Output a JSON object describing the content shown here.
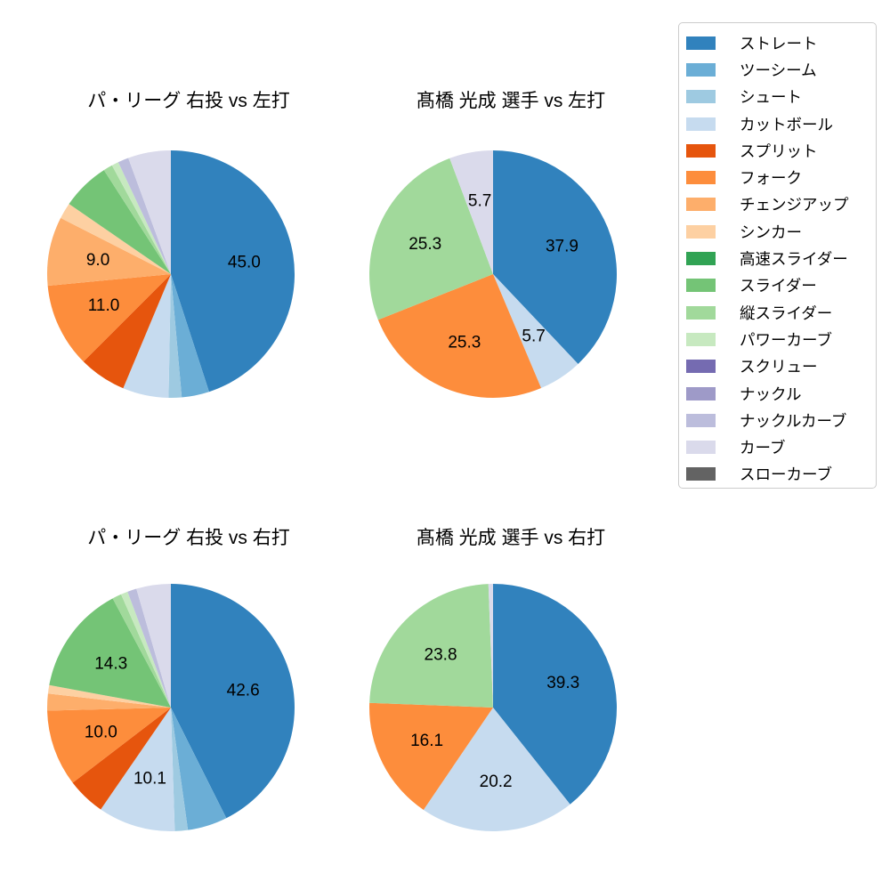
{
  "figure": {
    "background": "#ffffff",
    "text_color": "#000000",
    "legend_border_color": "#cccccc"
  },
  "legend": {
    "items": [
      {
        "label": "ストレート",
        "color": "#3182bd"
      },
      {
        "label": "ツーシーム",
        "color": "#6baed6"
      },
      {
        "label": "シュート",
        "color": "#9ecae1"
      },
      {
        "label": "カットボール",
        "color": "#c6dbef"
      },
      {
        "label": "スプリット",
        "color": "#e6550d"
      },
      {
        "label": "フォーク",
        "color": "#fd8d3c"
      },
      {
        "label": "チェンジアップ",
        "color": "#fdae6b"
      },
      {
        "label": "シンカー",
        "color": "#fdd0a2"
      },
      {
        "label": "高速スライダー",
        "color": "#31a354"
      },
      {
        "label": "スライダー",
        "color": "#74c476"
      },
      {
        "label": "縦スライダー",
        "color": "#a1d99b"
      },
      {
        "label": "パワーカーブ",
        "color": "#c7e9c0"
      },
      {
        "label": "スクリュー",
        "color": "#756bb1"
      },
      {
        "label": "ナックル",
        "color": "#9e9ac8"
      },
      {
        "label": "ナックルカーブ",
        "color": "#bcbddc"
      },
      {
        "label": "カーブ",
        "color": "#dadaeb"
      },
      {
        "label": "スローカーブ",
        "color": "#636363"
      }
    ]
  },
  "chart_data": [
    {
      "type": "pie",
      "title": "パ・リーグ 右投 vs 左打",
      "start_angle": "12-oclock",
      "direction": "clockwise",
      "value_unit": "percent",
      "slices": [
        {
          "label": "ストレート",
          "value": 45.0,
          "value_label_shown": true
        },
        {
          "label": "ツーシーム",
          "value": 3.6,
          "value_label_shown": false
        },
        {
          "label": "シュート",
          "value": 1.7,
          "value_label_shown": false
        },
        {
          "label": "カットボール",
          "value": 6.0,
          "value_label_shown": false
        },
        {
          "label": "スプリット",
          "value": 6.2,
          "value_label_shown": false
        },
        {
          "label": "フォーク",
          "value": 11.0,
          "value_label_shown": true
        },
        {
          "label": "チェンジアップ",
          "value": 9.0,
          "value_label_shown": true
        },
        {
          "label": "シンカー",
          "value": 2.1,
          "value_label_shown": false
        },
        {
          "label": "スライダー",
          "value": 6.3,
          "value_label_shown": false
        },
        {
          "label": "縦スライダー",
          "value": 1.2,
          "value_label_shown": false
        },
        {
          "label": "パワーカーブ",
          "value": 0.9,
          "value_label_shown": false
        },
        {
          "label": "ナックルカーブ",
          "value": 1.4,
          "value_label_shown": false
        },
        {
          "label": "カーブ",
          "value": 5.6,
          "value_label_shown": false
        }
      ]
    },
    {
      "type": "pie",
      "title": "髙橋 光成 選手 vs 左打",
      "start_angle": "12-oclock",
      "direction": "clockwise",
      "value_unit": "percent",
      "slices": [
        {
          "label": "ストレート",
          "value": 37.9,
          "value_label_shown": true
        },
        {
          "label": "カットボール",
          "value": 5.7,
          "value_label_shown": true
        },
        {
          "label": "フォーク",
          "value": 25.3,
          "value_label_shown": true
        },
        {
          "label": "縦スライダー",
          "value": 25.3,
          "value_label_shown": true
        },
        {
          "label": "カーブ",
          "value": 5.7,
          "value_label_shown": true
        }
      ]
    },
    {
      "type": "pie",
      "title": "パ・リーグ 右投 vs 右打",
      "start_angle": "12-oclock",
      "direction": "clockwise",
      "value_unit": "percent",
      "slices": [
        {
          "label": "ストレート",
          "value": 42.6,
          "value_label_shown": true
        },
        {
          "label": "ツーシーム",
          "value": 5.2,
          "value_label_shown": false
        },
        {
          "label": "シュート",
          "value": 1.7,
          "value_label_shown": false
        },
        {
          "label": "カットボール",
          "value": 10.1,
          "value_label_shown": true
        },
        {
          "label": "スプリット",
          "value": 5.0,
          "value_label_shown": false
        },
        {
          "label": "フォーク",
          "value": 10.0,
          "value_label_shown": true
        },
        {
          "label": "チェンジアップ",
          "value": 2.2,
          "value_label_shown": false
        },
        {
          "label": "シンカー",
          "value": 1.1,
          "value_label_shown": false
        },
        {
          "label": "スライダー",
          "value": 14.3,
          "value_label_shown": true
        },
        {
          "label": "縦スライダー",
          "value": 1.2,
          "value_label_shown": false
        },
        {
          "label": "パワーカーブ",
          "value": 0.9,
          "value_label_shown": false
        },
        {
          "label": "ナックルカーブ",
          "value": 1.2,
          "value_label_shown": false
        },
        {
          "label": "カーブ",
          "value": 4.5,
          "value_label_shown": false
        }
      ]
    },
    {
      "type": "pie",
      "title": "髙橋 光成 選手 vs 右打",
      "start_angle": "12-oclock",
      "direction": "clockwise",
      "value_unit": "percent",
      "slices": [
        {
          "label": "ストレート",
          "value": 39.3,
          "value_label_shown": true
        },
        {
          "label": "カットボール",
          "value": 20.2,
          "value_label_shown": true
        },
        {
          "label": "フォーク",
          "value": 16.1,
          "value_label_shown": true
        },
        {
          "label": "縦スライダー",
          "value": 23.8,
          "value_label_shown": true
        },
        {
          "label": "カーブ",
          "value": 0.6,
          "value_label_shown": false
        }
      ]
    }
  ]
}
